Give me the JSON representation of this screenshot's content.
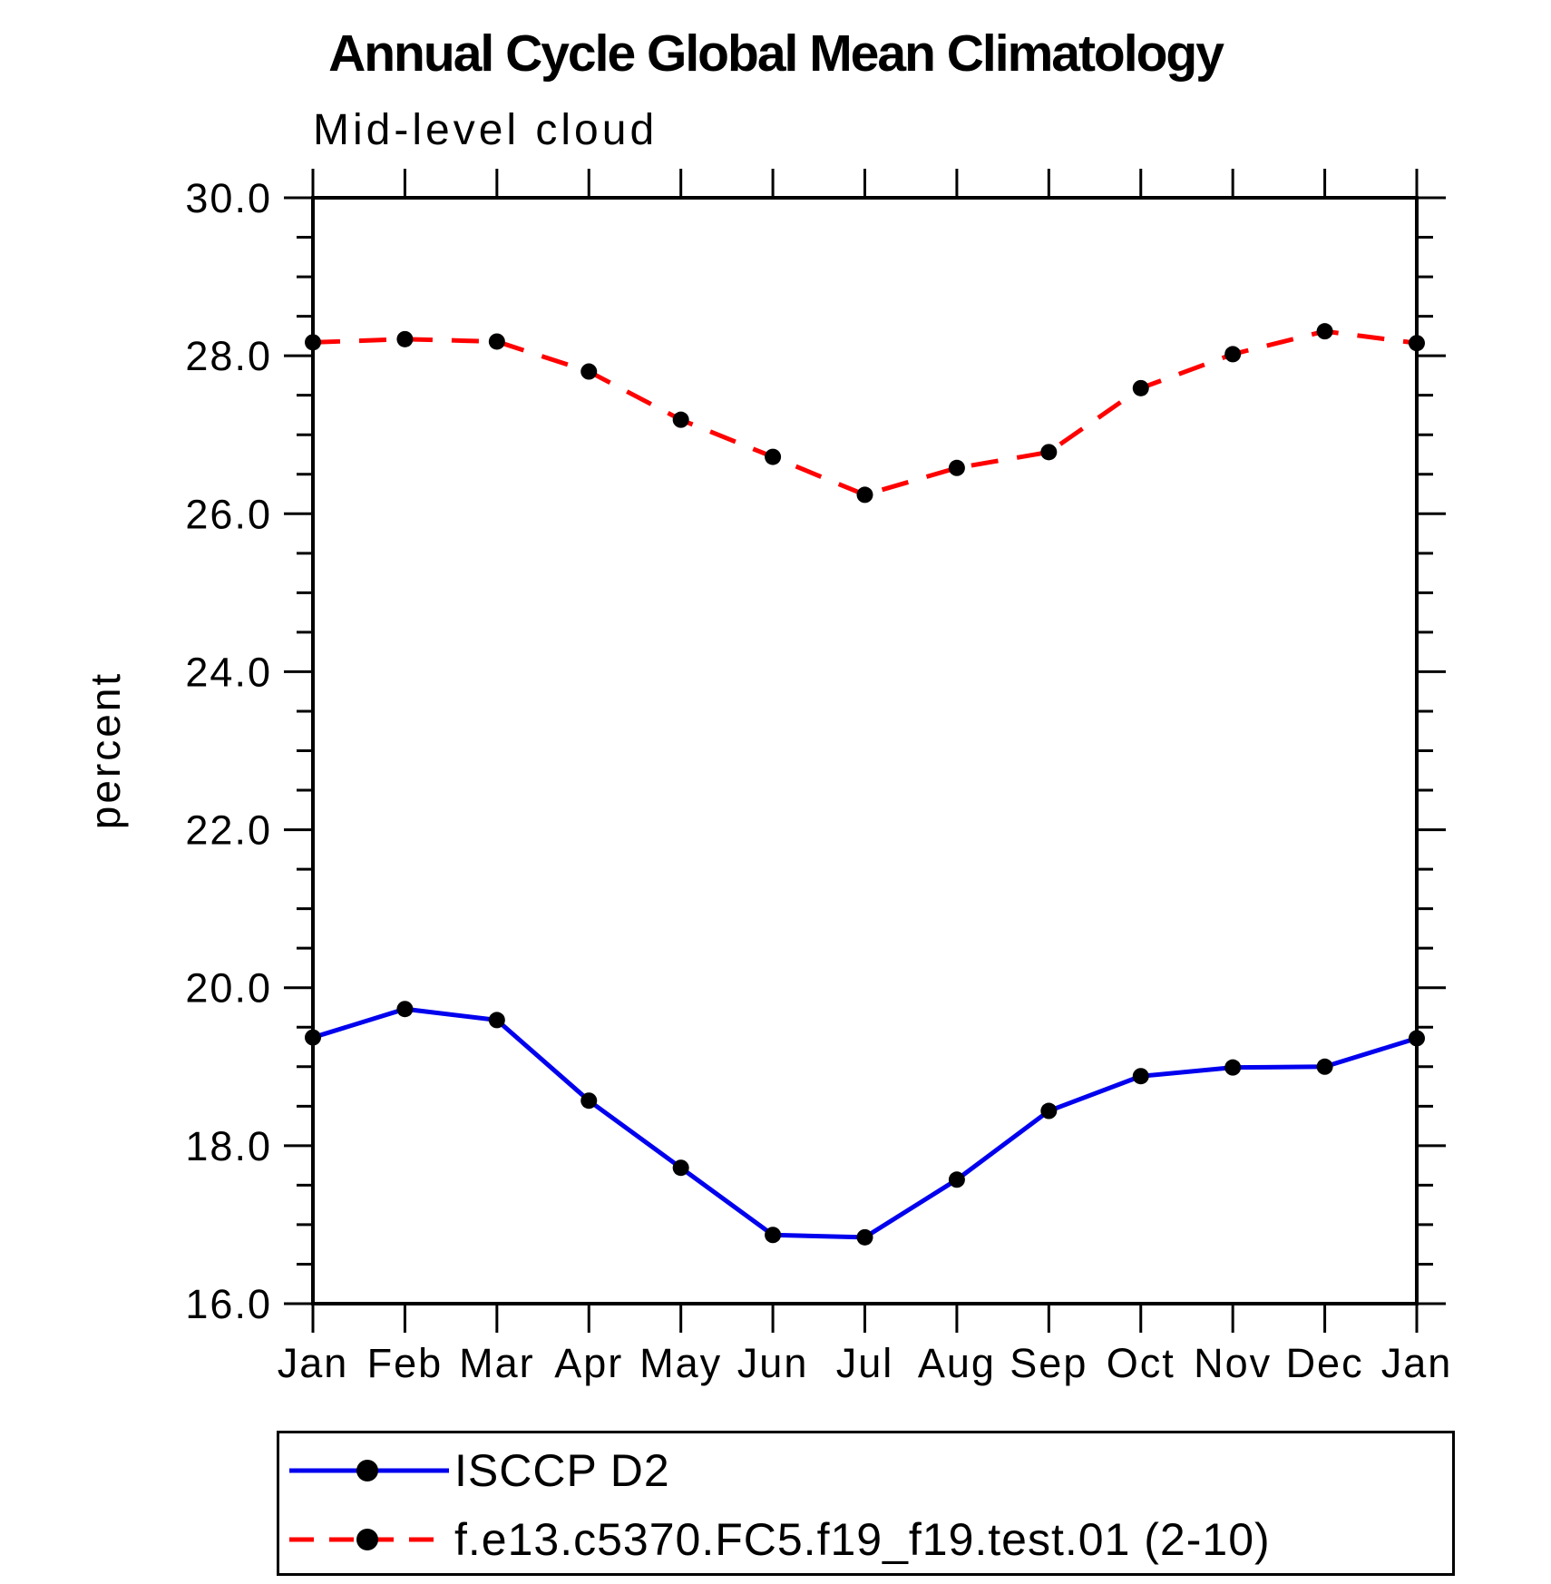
{
  "chart_data": {
    "type": "line",
    "title": "Annual Cycle Global Mean Climatology",
    "subtitle": "Mid-level cloud",
    "xlabel": "",
    "ylabel": "percent",
    "categories": [
      "Jan",
      "Feb",
      "Mar",
      "Apr",
      "May",
      "Jun",
      "Jul",
      "Aug",
      "Sep",
      "Oct",
      "Nov",
      "Dec",
      "Jan"
    ],
    "ylim": [
      16.0,
      30.0
    ],
    "ytick_labels": [
      "30.0",
      "28.0",
      "26.0",
      "24.0",
      "22.0",
      "20.0",
      "18.0",
      "16.0"
    ],
    "ytick_major_step": 2.0,
    "ytick_minor_step": 0.5,
    "grid": false,
    "legend_position": "bottom-left",
    "axis_color": "#000000",
    "background_color": "#ffffff",
    "series": [
      {
        "name": "ISCCP D2",
        "color": "#0000ee",
        "line_style": "solid",
        "marker": "circle",
        "marker_color": "#000000",
        "values": [
          19.37,
          19.73,
          19.59,
          18.57,
          17.72,
          16.87,
          16.84,
          17.57,
          18.44,
          18.88,
          18.99,
          19.0,
          19.36
        ]
      },
      {
        "name": "f.e13.c5370.FC5.f19_f19.test.01 (2-10)",
        "color": "#ff0000",
        "line_style": "dashed",
        "marker": "circle",
        "marker_color": "#000000",
        "values": [
          28.17,
          28.21,
          28.18,
          27.8,
          27.19,
          26.72,
          26.24,
          26.58,
          26.78,
          27.59,
          28.02,
          28.31,
          28.16
        ]
      }
    ]
  }
}
